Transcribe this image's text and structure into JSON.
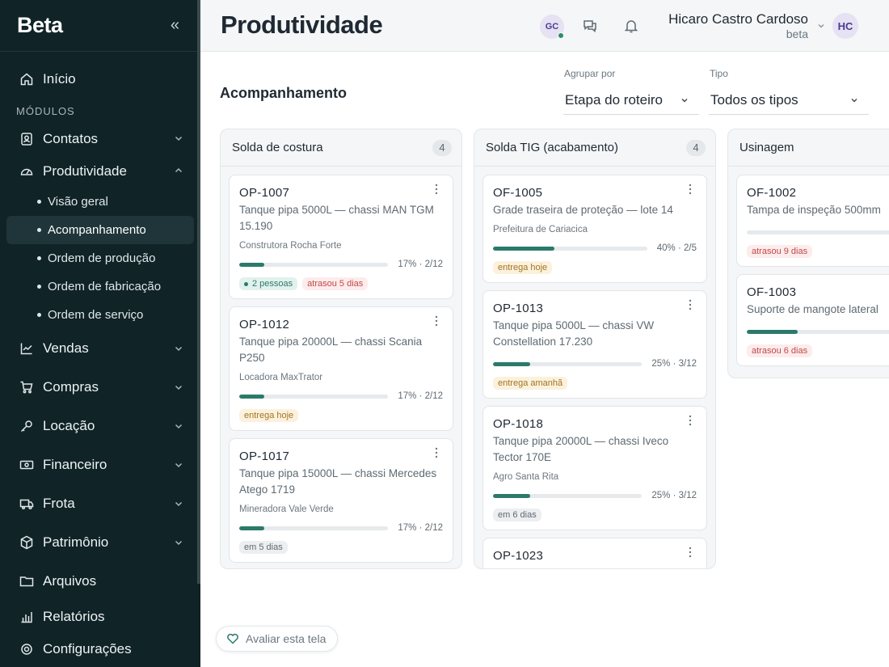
{
  "sidebar": {
    "brand": "Beta",
    "collapse_glyph": "«",
    "home": "Início",
    "section_label": "MÓDULOS",
    "contatos": "Contatos",
    "produtividade": "Produtividade",
    "sub_items": [
      "Visão geral",
      "Acompanhamento",
      "Ordem de produção",
      "Ordem de fabricação",
      "Ordem de serviço"
    ],
    "vendas": "Vendas",
    "compras": "Compras",
    "locacao": "Locação",
    "financeiro": "Financeiro",
    "frota": "Frota",
    "patrimonio": "Patrimônio",
    "arquivos": "Arquivos",
    "relatorios": "Relatórios",
    "configuracoes": "Configurações"
  },
  "header": {
    "title": "Produtividade",
    "small_avatar": "GC",
    "user_name": "Hicaro Castro Cardoso",
    "user_org": "beta",
    "avatar": "HC"
  },
  "main": {
    "section_title": "Acompanhamento",
    "group_by": {
      "label": "Agrupar por",
      "value": "Etapa do roteiro"
    },
    "type": {
      "label": "Tipo",
      "value": "Todos os tipos"
    }
  },
  "columns": [
    {
      "title": "Solda de costura",
      "count": "4",
      "cards": [
        {
          "code": "OP-1007",
          "desc": "Tanque pipa 5000L — chassi MAN TGM 15.190",
          "client": "Construtora Rocha Forte",
          "progress": 0.17,
          "pct": "17% · 2/12",
          "tags": [
            {
              "kind": "people",
              "text": "2 pessoas"
            },
            {
              "kind": "late",
              "text": "atrasou 5 dias"
            }
          ]
        },
        {
          "code": "OP-1012",
          "desc": "Tanque pipa 20000L — chassi Scania P250",
          "client": "Locadora MaxTrator",
          "progress": 0.17,
          "pct": "17% · 2/12",
          "tags": [
            {
              "kind": "today",
              "text": "entrega hoje"
            }
          ]
        },
        {
          "code": "OP-1017",
          "desc": "Tanque pipa 15000L — chassi Mercedes Atego 1719",
          "client": "Mineradora Vale Verde",
          "progress": 0.17,
          "pct": "17% · 2/12",
          "tags": [
            {
              "kind": "neutral",
              "text": "em 5 dias"
            }
          ]
        }
      ]
    },
    {
      "title": "Solda TIG (acabamento)",
      "count": "4",
      "cards": [
        {
          "code": "OF-1005",
          "desc": "Grade traseira de proteção — lote 14",
          "client": "Prefeitura de Cariacica",
          "progress": 0.4,
          "pct": "40% · 2/5",
          "tags": [
            {
              "kind": "today",
              "text": "entrega hoje"
            }
          ]
        },
        {
          "code": "OP-1013",
          "desc": "Tanque pipa 5000L — chassi VW Constellation 17.230",
          "client": "",
          "progress": 0.25,
          "pct": "25% · 3/12",
          "tags": [
            {
              "kind": "today",
              "text": "entrega amanhã"
            }
          ]
        },
        {
          "code": "OP-1018",
          "desc": "Tanque pipa 20000L — chassi Iveco Tector 170E",
          "client": "Agro Santa Rita",
          "progress": 0.25,
          "pct": "25% · 3/12",
          "tags": [
            {
              "kind": "neutral",
              "text": "em 6 dias"
            }
          ]
        },
        {
          "code": "OP-1023",
          "desc": "",
          "client": "",
          "progress": null,
          "pct": "",
          "tags": []
        }
      ]
    },
    {
      "title": "Usinagem",
      "count": "",
      "cards": [
        {
          "code": "OF-1002",
          "desc": "Tampa de inspeção 500mm",
          "client": "",
          "progress": 0.0,
          "pct": "",
          "tags": [
            {
              "kind": "late",
              "text": "atrasou 9 dias"
            }
          ]
        },
        {
          "code": "OF-1003",
          "desc": "Suporte de mangote lateral",
          "client": "",
          "progress": 0.25,
          "pct": "",
          "tags": [
            {
              "kind": "late",
              "text": "atrasou 6 dias"
            }
          ]
        }
      ]
    }
  ],
  "feedback_button": "Avaliar esta tela"
}
